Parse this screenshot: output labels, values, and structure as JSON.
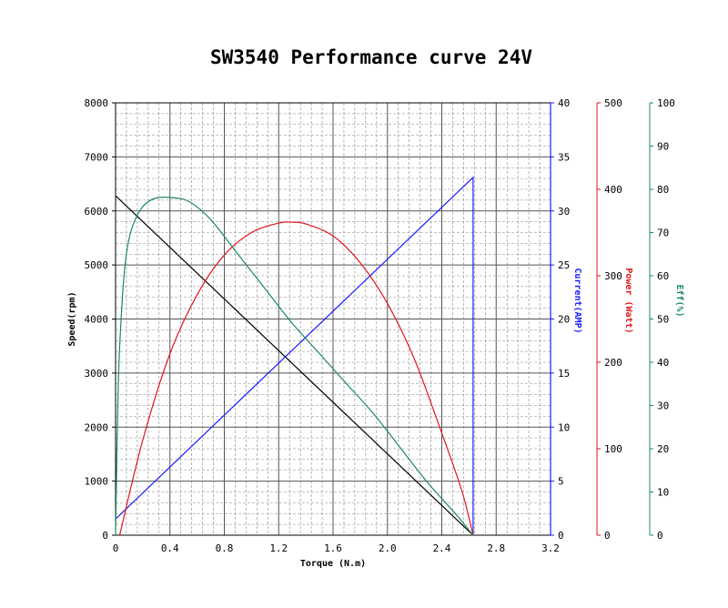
{
  "chart_data": {
    "type": "line",
    "title": "SW3540 Performance curve  24V",
    "xlabel": "Torque (N.m)",
    "xlim": [
      0,
      3.2
    ],
    "x_ticks": [
      "0",
      "0.4",
      "0.8",
      "1.2",
      "1.6",
      "2.0",
      "2.4",
      "2.8",
      "3.2"
    ],
    "axes": [
      {
        "key": "speed",
        "label": "Speed(rpm)",
        "range": [
          0,
          8000
        ],
        "ticks": [
          "0",
          "1000",
          "2000",
          "3000",
          "4000",
          "5000",
          "6000",
          "7000",
          "8000"
        ],
        "color": "#000000",
        "side": "left"
      },
      {
        "key": "current",
        "label": "Current(AMP)",
        "range": [
          0,
          40
        ],
        "ticks": [
          "0",
          "5",
          "10",
          "15",
          "20",
          "25",
          "30",
          "35",
          "40"
        ],
        "color": "#1a1aff",
        "side": "right"
      },
      {
        "key": "power",
        "label": "Power (Watt)",
        "range": [
          0,
          500
        ],
        "ticks": [
          "0",
          "100",
          "200",
          "300",
          "400",
          "500"
        ],
        "color": "#e0161e",
        "side": "right"
      },
      {
        "key": "eff",
        "label": "Eff(%)",
        "range": [
          0,
          100
        ],
        "ticks": [
          "0",
          "10",
          "20",
          "30",
          "40",
          "50",
          "60",
          "70",
          "80",
          "90",
          "100"
        ],
        "color": "#1d8a5c",
        "side": "right"
      }
    ],
    "series": [
      {
        "name": "Speed",
        "axis": "speed",
        "color": "#000000",
        "x": [
          0,
          2.63
        ],
        "y": [
          6280,
          0
        ]
      },
      {
        "name": "Current",
        "axis": "current",
        "color": "#1a1aff",
        "x": [
          0,
          2.63,
          2.63
        ],
        "y": [
          1.5,
          33.1,
          0
        ]
      },
      {
        "name": "Power",
        "axis": "power",
        "color": "#e0161e",
        "x": [
          0.03,
          0.2,
          0.4,
          0.6,
          0.8,
          1.0,
          1.2,
          1.3,
          1.4,
          1.6,
          1.8,
          2.0,
          2.2,
          2.4,
          2.55,
          2.63
        ],
        "y": [
          0,
          110,
          210,
          278,
          324,
          350,
          361,
          362,
          360,
          346,
          315,
          268,
          203,
          118,
          50,
          0
        ]
      },
      {
        "name": "Eff",
        "axis": "eff",
        "color": "#1d8a5c",
        "x": [
          0,
          0.02,
          0.05,
          0.08,
          0.12,
          0.2,
          0.3,
          0.44,
          0.55,
          0.7,
          0.9,
          1.1,
          1.3,
          1.5,
          1.7,
          1.9,
          2.1,
          2.3,
          2.5,
          2.63
        ],
        "y": [
          0,
          35,
          55,
          65,
          71,
          76,
          78,
          78,
          77,
          73,
          65,
          57,
          49,
          42,
          35,
          28,
          20,
          12,
          5,
          0
        ]
      }
    ]
  }
}
